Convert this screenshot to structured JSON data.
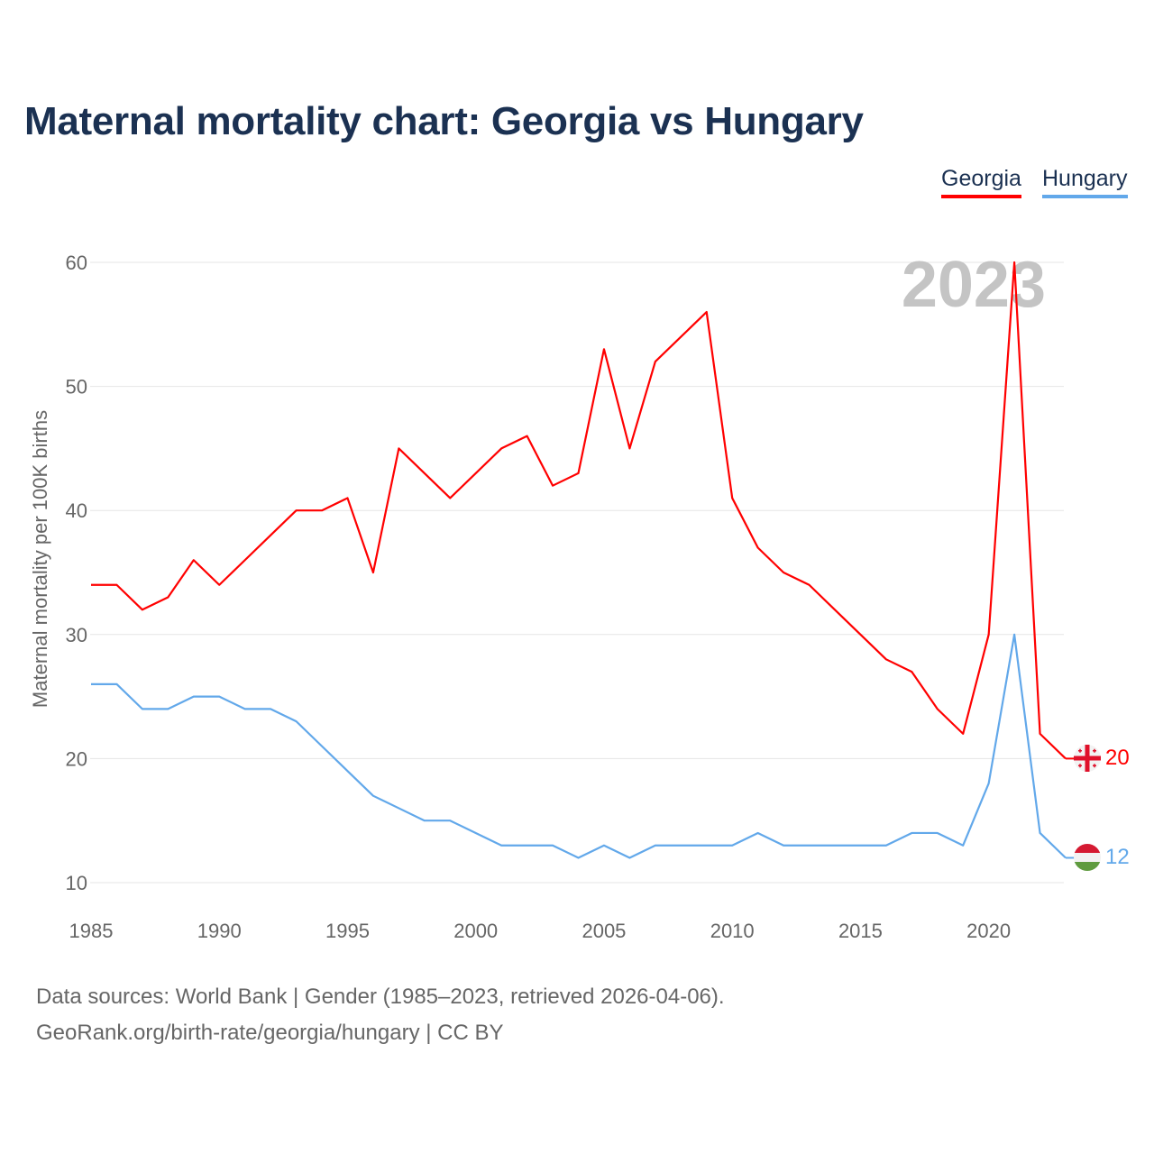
{
  "title": "Maternal mortality chart: Georgia vs Hungary",
  "legend": [
    "Georgia",
    "Hungary"
  ],
  "year_watermark": "2023",
  "footer": {
    "line1": "Data sources: World Bank | Gender (1985–2023, retrieved 2026-04-06).",
    "line2": "GeoRank.org/birth-rate/georgia/hungary | CC BY"
  },
  "chart_data": {
    "type": "line",
    "title": "Maternal mortality chart: Georgia vs Hungary",
    "xlabel": "",
    "ylabel": "Maternal mortality per 100K births",
    "xlim": [
      1985,
      2023
    ],
    "ylim": [
      10,
      60
    ],
    "xticks": [
      1985,
      1990,
      1995,
      2000,
      2005,
      2010,
      2015,
      2020
    ],
    "yticks": [
      10,
      20,
      30,
      40,
      50,
      60
    ],
    "grid": true,
    "legend_position": "top-right",
    "x": [
      1985,
      1986,
      1987,
      1988,
      1989,
      1990,
      1991,
      1992,
      1993,
      1994,
      1995,
      1996,
      1997,
      1998,
      1999,
      2000,
      2001,
      2002,
      2003,
      2004,
      2005,
      2006,
      2007,
      2008,
      2009,
      2010,
      2011,
      2012,
      2013,
      2014,
      2015,
      2016,
      2017,
      2018,
      2019,
      2020,
      2021,
      2022,
      2023
    ],
    "series": [
      {
        "name": "Georgia",
        "color": "#ff0000",
        "end_label": "20",
        "values": [
          34,
          34,
          32,
          33,
          36,
          34,
          36,
          38,
          40,
          40,
          41,
          35,
          45,
          43,
          41,
          43,
          45,
          46,
          42,
          43,
          53,
          45,
          52,
          54,
          56,
          41,
          37,
          35,
          34,
          32,
          30,
          28,
          27,
          24,
          22,
          30,
          60,
          22,
          20
        ]
      },
      {
        "name": "Hungary",
        "color": "#62a8ea",
        "end_label": "12",
        "values": [
          26,
          26,
          24,
          24,
          25,
          25,
          24,
          24,
          23,
          21,
          19,
          17,
          16,
          15,
          15,
          14,
          13,
          13,
          13,
          12,
          13,
          12,
          13,
          13,
          13,
          13,
          14,
          13,
          13,
          13,
          13,
          13,
          14,
          14,
          13,
          18,
          30,
          14,
          12
        ]
      }
    ]
  }
}
